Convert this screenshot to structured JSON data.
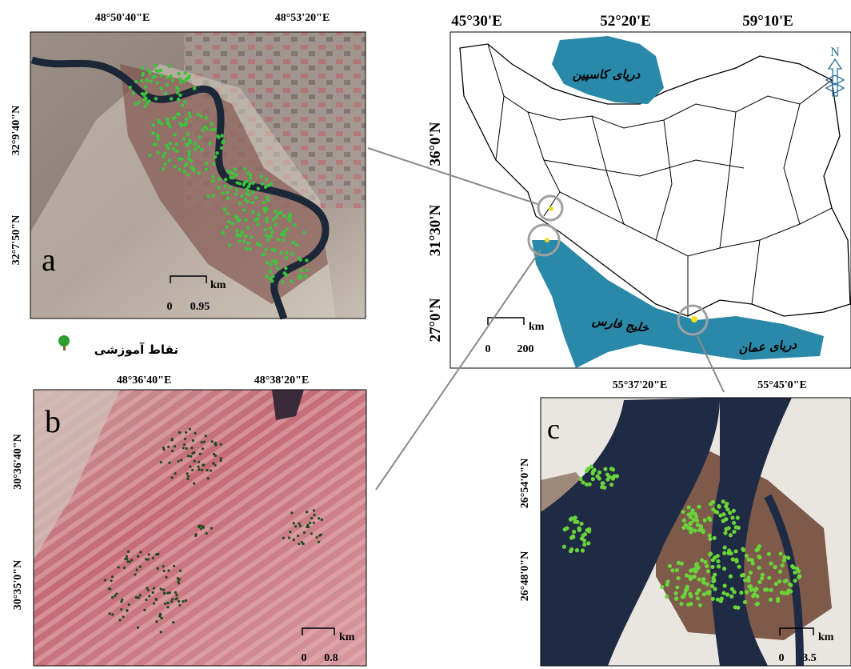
{
  "panel_a": {
    "letter": "a",
    "lon_labels": [
      "48°50'40\"E",
      "48°53'20\"E"
    ],
    "lat_labels": [
      "32°9'40\"N",
      "32°7'50\"N"
    ],
    "scale": {
      "unit": "km",
      "start": "0",
      "end": "0.95"
    }
  },
  "legend": {
    "label": "نقاط آموزشی"
  },
  "panel_b": {
    "letter": "b",
    "lon_labels": [
      "48°36'40\"E",
      "48°38'20\"E"
    ],
    "lat_labels": [
      "30°36'40\"N",
      "30°35'0\"N"
    ],
    "scale": {
      "unit": "km",
      "start": "0",
      "end": "0.8"
    }
  },
  "main_map": {
    "lon_labels": [
      "45°30'E",
      "52°20'E",
      "59°10'E"
    ],
    "lat_labels": [
      "36°0'N",
      "31°30'N",
      "27°0'N"
    ],
    "north": "N",
    "water": {
      "caspian": "دریای کاسپین",
      "persian_gulf": "خلیج فارس",
      "oman_sea": "دریای عمان"
    },
    "scale": {
      "unit": "km",
      "start": "0",
      "end": "200"
    }
  },
  "panel_c": {
    "letter": "c",
    "lon_labels": [
      "55°37'20\"E",
      "55°45'0\"E"
    ],
    "lat_labels": [
      "26°54'0\"N",
      "26°48'0\"N"
    ],
    "scale": {
      "unit": "km",
      "start": "0",
      "end": "3.5"
    }
  }
}
